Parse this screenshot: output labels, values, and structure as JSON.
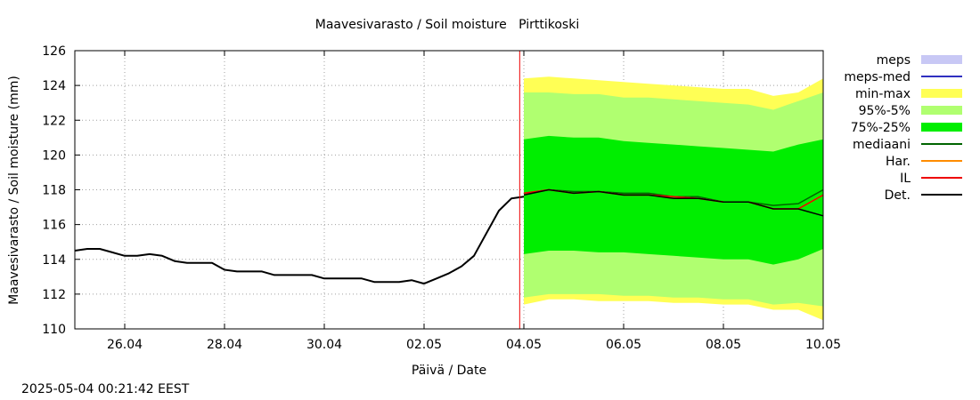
{
  "timestamp": "2025-05-04 00:21:42 EEST",
  "chart_data": {
    "type": "line",
    "title": "Maavesivarasto / Soil moisture   Pirttikoski",
    "xlabel": "Päivä / Date",
    "ylabel": "Maavesivarasto / Soil moisture (mm)",
    "ylim": [
      110,
      126
    ],
    "xlim": [
      "2025-04-25",
      "2025-05-10"
    ],
    "y_ticks": [
      110,
      112,
      114,
      116,
      118,
      120,
      122,
      124,
      126
    ],
    "x_ticks": [
      {
        "date": "2025-04-26",
        "label": "26.04"
      },
      {
        "date": "2025-04-28",
        "label": "28.04"
      },
      {
        "date": "2025-04-30",
        "label": "30.04"
      },
      {
        "date": "2025-05-02",
        "label": "02.05"
      },
      {
        "date": "2025-05-04",
        "label": "04.05"
      },
      {
        "date": "2025-05-06",
        "label": "06.05"
      },
      {
        "date": "2025-05-08",
        "label": "08.05"
      },
      {
        "date": "2025-05-10",
        "label": "10.05"
      }
    ],
    "grid": true,
    "legend_position": "right",
    "forecast_start": "2025-05-03 22:00",
    "legend": [
      {
        "label": "meps",
        "kind": "box",
        "color": "#c8c8f5"
      },
      {
        "label": "meps-med",
        "kind": "line",
        "color": "#3030c0"
      },
      {
        "label": "min-max",
        "kind": "box",
        "color": "#ffff55"
      },
      {
        "label": "95%-5%",
        "kind": "box",
        "color": "#b0ff70"
      },
      {
        "label": "75%-25%",
        "kind": "box",
        "color": "#00ee00"
      },
      {
        "label": "mediaani",
        "kind": "line",
        "color": "#006400"
      },
      {
        "label": "Har.",
        "kind": "line",
        "color": "#ff8c00"
      },
      {
        "label": "IL",
        "kind": "line",
        "color": "#ee0000"
      },
      {
        "label": "Det.",
        "kind": "line",
        "color": "#000000"
      }
    ],
    "observed": {
      "name": "Det.",
      "x": [
        "2025-04-25 00:00",
        "2025-04-25 06:00",
        "2025-04-25 12:00",
        "2025-04-25 18:00",
        "2025-04-26 00:00",
        "2025-04-26 06:00",
        "2025-04-26 12:00",
        "2025-04-26 18:00",
        "2025-04-27 00:00",
        "2025-04-27 06:00",
        "2025-04-27 12:00",
        "2025-04-27 18:00",
        "2025-04-28 00:00",
        "2025-04-28 06:00",
        "2025-04-28 12:00",
        "2025-04-28 18:00",
        "2025-04-29 00:00",
        "2025-04-29 06:00",
        "2025-04-29 12:00",
        "2025-04-29 18:00",
        "2025-04-30 00:00",
        "2025-04-30 06:00",
        "2025-04-30 12:00",
        "2025-04-30 18:00",
        "2025-05-01 00:00",
        "2025-05-01 06:00",
        "2025-05-01 12:00",
        "2025-05-01 18:00",
        "2025-05-02 00:00",
        "2025-05-02 06:00",
        "2025-05-02 12:00",
        "2025-05-02 18:00",
        "2025-05-03 00:00",
        "2025-05-03 06:00",
        "2025-05-03 12:00",
        "2025-05-03 18:00",
        "2025-05-04 00:00"
      ],
      "values": [
        114.5,
        114.6,
        114.6,
        114.4,
        114.2,
        114.2,
        114.3,
        114.2,
        113.9,
        113.8,
        113.8,
        113.8,
        113.4,
        113.3,
        113.3,
        113.3,
        113.1,
        113.1,
        113.1,
        113.1,
        112.9,
        112.9,
        112.9,
        112.9,
        112.7,
        112.7,
        112.7,
        112.8,
        112.6,
        112.9,
        113.2,
        113.6,
        114.2,
        115.5,
        116.8,
        117.5,
        117.6
      ]
    },
    "forecast": {
      "x": [
        "2025-05-04 00:00",
        "2025-05-04 12:00",
        "2025-05-05 00:00",
        "2025-05-05 12:00",
        "2025-05-06 00:00",
        "2025-05-06 12:00",
        "2025-05-07 00:00",
        "2025-05-07 12:00",
        "2025-05-08 00:00",
        "2025-05-08 12:00",
        "2025-05-09 00:00",
        "2025-05-09 12:00",
        "2025-05-10 00:00"
      ],
      "series": [
        {
          "name": "min-max",
          "lower": [
            111.4,
            111.7,
            111.7,
            111.6,
            111.6,
            111.6,
            111.5,
            111.5,
            111.4,
            111.4,
            111.1,
            111.1,
            110.5
          ],
          "upper": [
            124.4,
            124.5,
            124.4,
            124.3,
            124.2,
            124.1,
            124.0,
            123.9,
            123.8,
            123.8,
            123.4,
            123.6,
            124.4
          ]
        },
        {
          "name": "95%-5%",
          "lower": [
            111.8,
            112.0,
            112.0,
            112.0,
            111.9,
            111.9,
            111.8,
            111.8,
            111.7,
            111.7,
            111.4,
            111.5,
            111.3
          ],
          "upper": [
            123.6,
            123.6,
            123.5,
            123.5,
            123.3,
            123.3,
            123.2,
            123.1,
            123.0,
            122.9,
            122.6,
            123.1,
            123.6
          ]
        },
        {
          "name": "75%-25%",
          "lower": [
            114.3,
            114.5,
            114.5,
            114.4,
            114.4,
            114.3,
            114.2,
            114.1,
            114.0,
            114.0,
            113.7,
            114.0,
            114.6
          ],
          "upper": [
            120.9,
            121.1,
            121.0,
            121.0,
            120.8,
            120.7,
            120.6,
            120.5,
            120.4,
            120.3,
            120.2,
            120.6,
            120.9
          ]
        },
        {
          "name": "mediaani",
          "values": [
            117.8,
            118.0,
            117.9,
            117.9,
            117.8,
            117.8,
            117.6,
            117.6,
            117.3,
            117.3,
            117.1,
            117.2,
            118.0
          ]
        },
        {
          "name": "Har.",
          "values": [
            117.8,
            118.0,
            117.8,
            117.9,
            117.7,
            117.7,
            117.6,
            117.5,
            117.3,
            117.3,
            116.9,
            116.9,
            117.7
          ]
        },
        {
          "name": "IL",
          "values": [
            117.8,
            118.0,
            117.8,
            117.9,
            117.7,
            117.7,
            117.6,
            117.5,
            117.3,
            117.3,
            116.9,
            116.9,
            117.7
          ]
        },
        {
          "name": "Det.",
          "values": [
            117.7,
            118.0,
            117.8,
            117.9,
            117.7,
            117.7,
            117.5,
            117.5,
            117.3,
            117.3,
            116.9,
            116.9,
            116.5
          ]
        }
      ]
    }
  }
}
